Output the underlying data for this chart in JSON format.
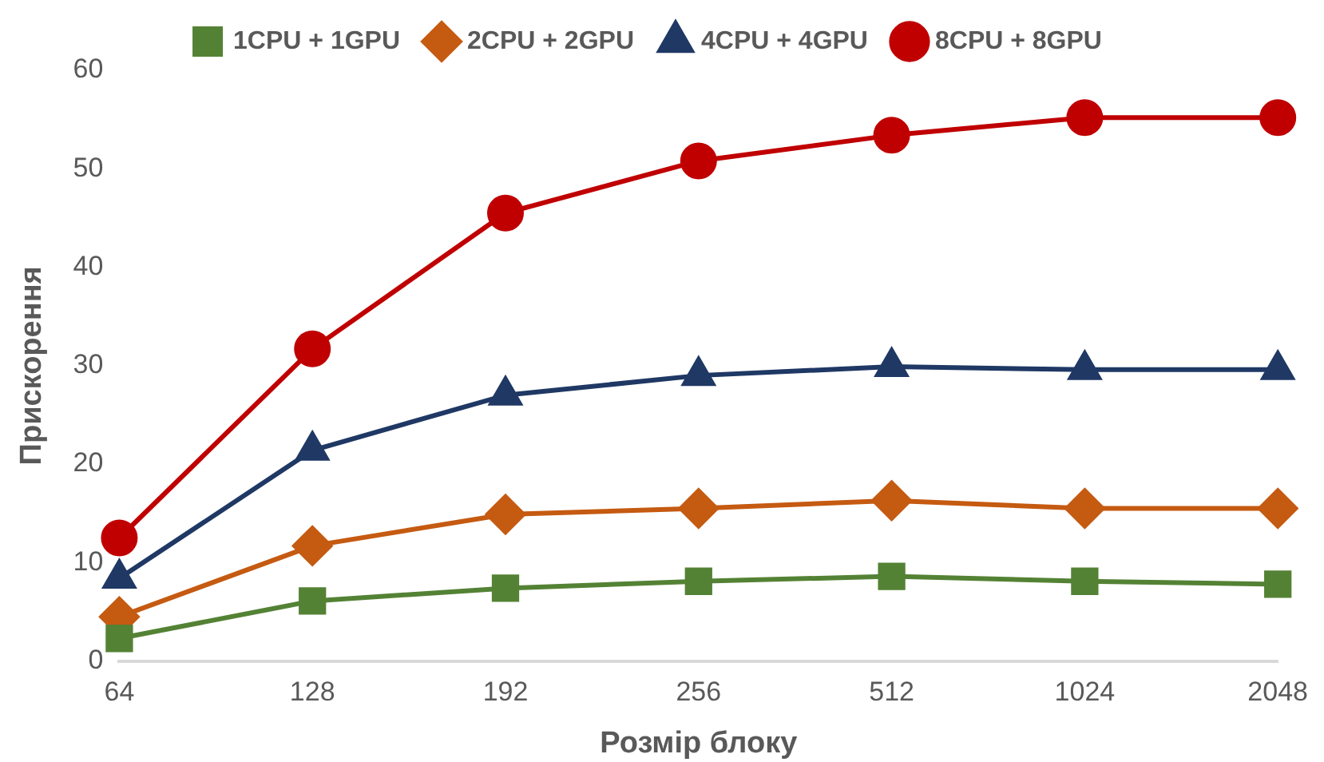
{
  "chart_data": {
    "type": "line",
    "xlabel": "Розмір блоку",
    "ylabel": "Прискорення",
    "categories": [
      "64",
      "128",
      "192",
      "256",
      "512",
      "1024",
      "2048"
    ],
    "ylim": [
      0,
      60
    ],
    "yticks": [
      0,
      10,
      20,
      30,
      40,
      50,
      60
    ],
    "grid": false,
    "legend": "top",
    "line_style": "solid",
    "series": [
      {
        "name": "1CPU + 1GPU",
        "color": "#548235",
        "marker": "square",
        "values": [
          2.3,
          6.1,
          7.4,
          8.1,
          8.6,
          8.1,
          7.8
        ]
      },
      {
        "name": "2CPU + 2GPU",
        "color": "#c55a11",
        "marker": "diamond",
        "values": [
          4.5,
          11.7,
          14.9,
          15.5,
          16.3,
          15.5,
          15.5
        ]
      },
      {
        "name": "4CPU + 4GPU",
        "color": "#1f3864",
        "marker": "triangle",
        "values": [
          8.4,
          21.4,
          27.0,
          29.0,
          29.9,
          29.6,
          29.6
        ]
      },
      {
        "name": "8CPU + 8GPU",
        "color": "#c00000",
        "marker": "circle",
        "values": [
          12.5,
          31.7,
          45.5,
          50.8,
          53.4,
          55.2,
          55.2
        ]
      }
    ]
  }
}
